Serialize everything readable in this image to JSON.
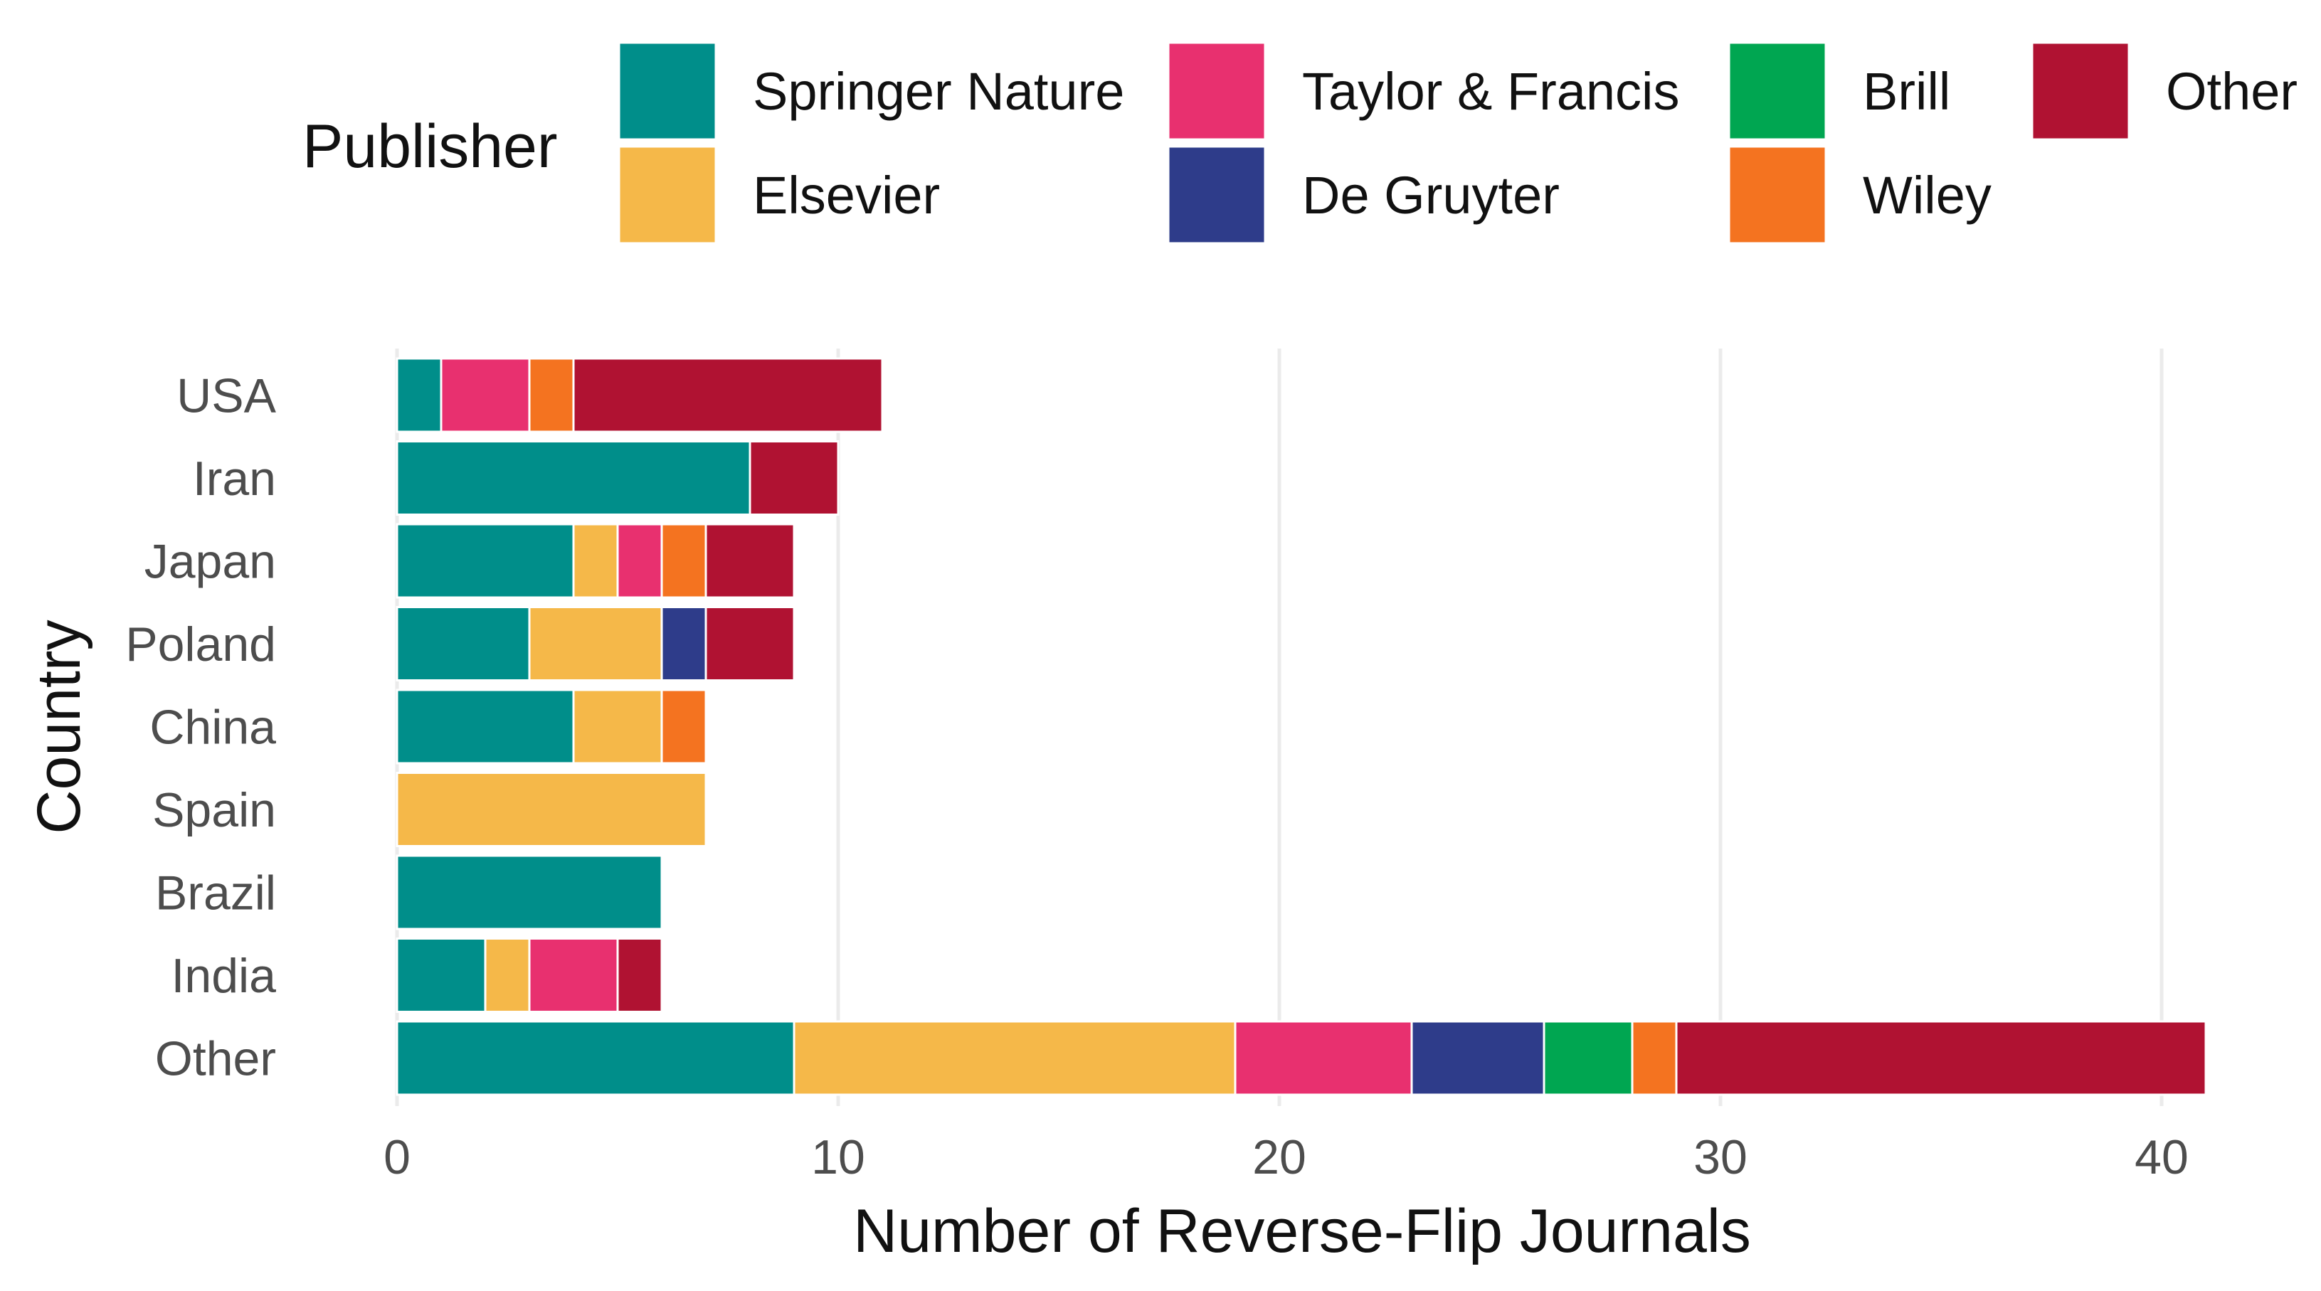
{
  "chart_data": {
    "type": "bar",
    "orientation": "horizontal",
    "stacked": true,
    "xlabel": "Number of Reverse-Flip Journals",
    "ylabel": "Country",
    "xlim": [
      0,
      41
    ],
    "xticks": [
      0,
      10,
      20,
      30,
      40
    ],
    "grid": true,
    "legend_title": "Publisher",
    "legend_position": "top",
    "categories": [
      "USA",
      "Iran",
      "Japan",
      "Poland",
      "China",
      "Spain",
      "Brazil",
      "India",
      "Other"
    ],
    "series": [
      {
        "name": "Springer Nature",
        "color": "#008e8a",
        "values": [
          1,
          8,
          4,
          3,
          4,
          0,
          6,
          2,
          9
        ]
      },
      {
        "name": "Elsevier",
        "color": "#f5b849",
        "values": [
          0,
          0,
          1,
          3,
          2,
          7,
          0,
          1,
          10
        ]
      },
      {
        "name": "Taylor & Francis",
        "color": "#e8306f",
        "values": [
          2,
          0,
          1,
          0,
          0,
          0,
          0,
          2,
          4
        ]
      },
      {
        "name": "De Gruyter",
        "color": "#2e3c8a",
        "values": [
          0,
          0,
          0,
          1,
          0,
          0,
          0,
          0,
          3
        ]
      },
      {
        "name": "Brill",
        "color": "#00a651",
        "values": [
          0,
          0,
          0,
          0,
          0,
          0,
          0,
          0,
          2
        ]
      },
      {
        "name": "Wiley",
        "color": "#f47320",
        "values": [
          1,
          0,
          1,
          0,
          1,
          0,
          0,
          0,
          1
        ]
      },
      {
        "name": "Other",
        "color": "#b01232",
        "values": [
          7,
          2,
          2,
          2,
          0,
          0,
          0,
          1,
          12
        ]
      }
    ]
  }
}
